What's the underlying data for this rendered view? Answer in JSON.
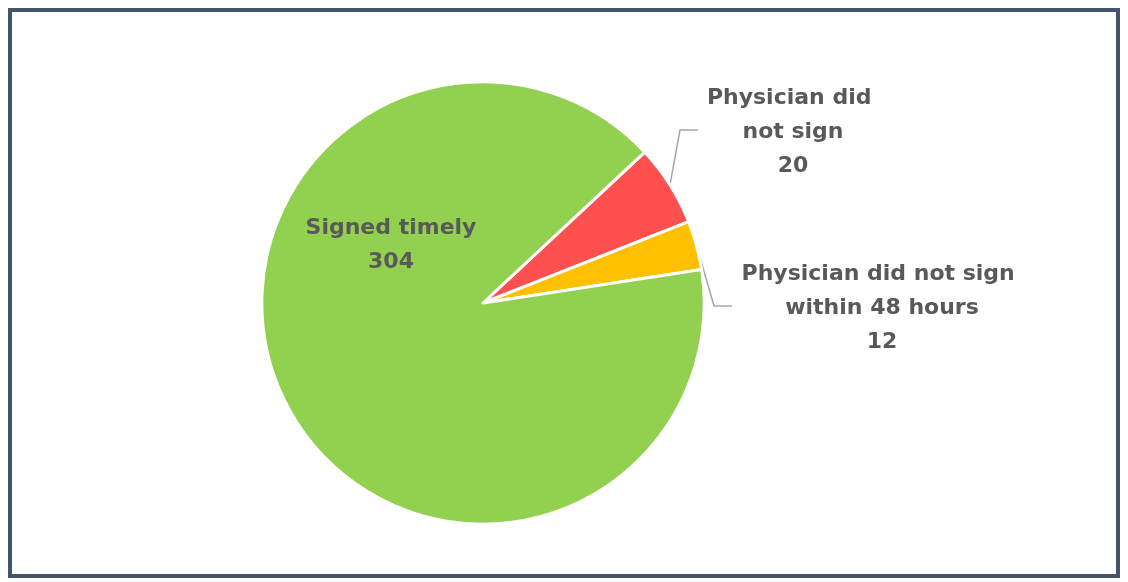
{
  "chart_data": {
    "type": "pie",
    "categories": [
      "Physician did not sign",
      "Physician did not sign within 48 hours",
      "Signed timely"
    ],
    "values": [
      20,
      12,
      304
    ],
    "colors": [
      "#ff5050",
      "#ffc000",
      "#92d050"
    ],
    "data_labels": true,
    "legend": false
  }
}
